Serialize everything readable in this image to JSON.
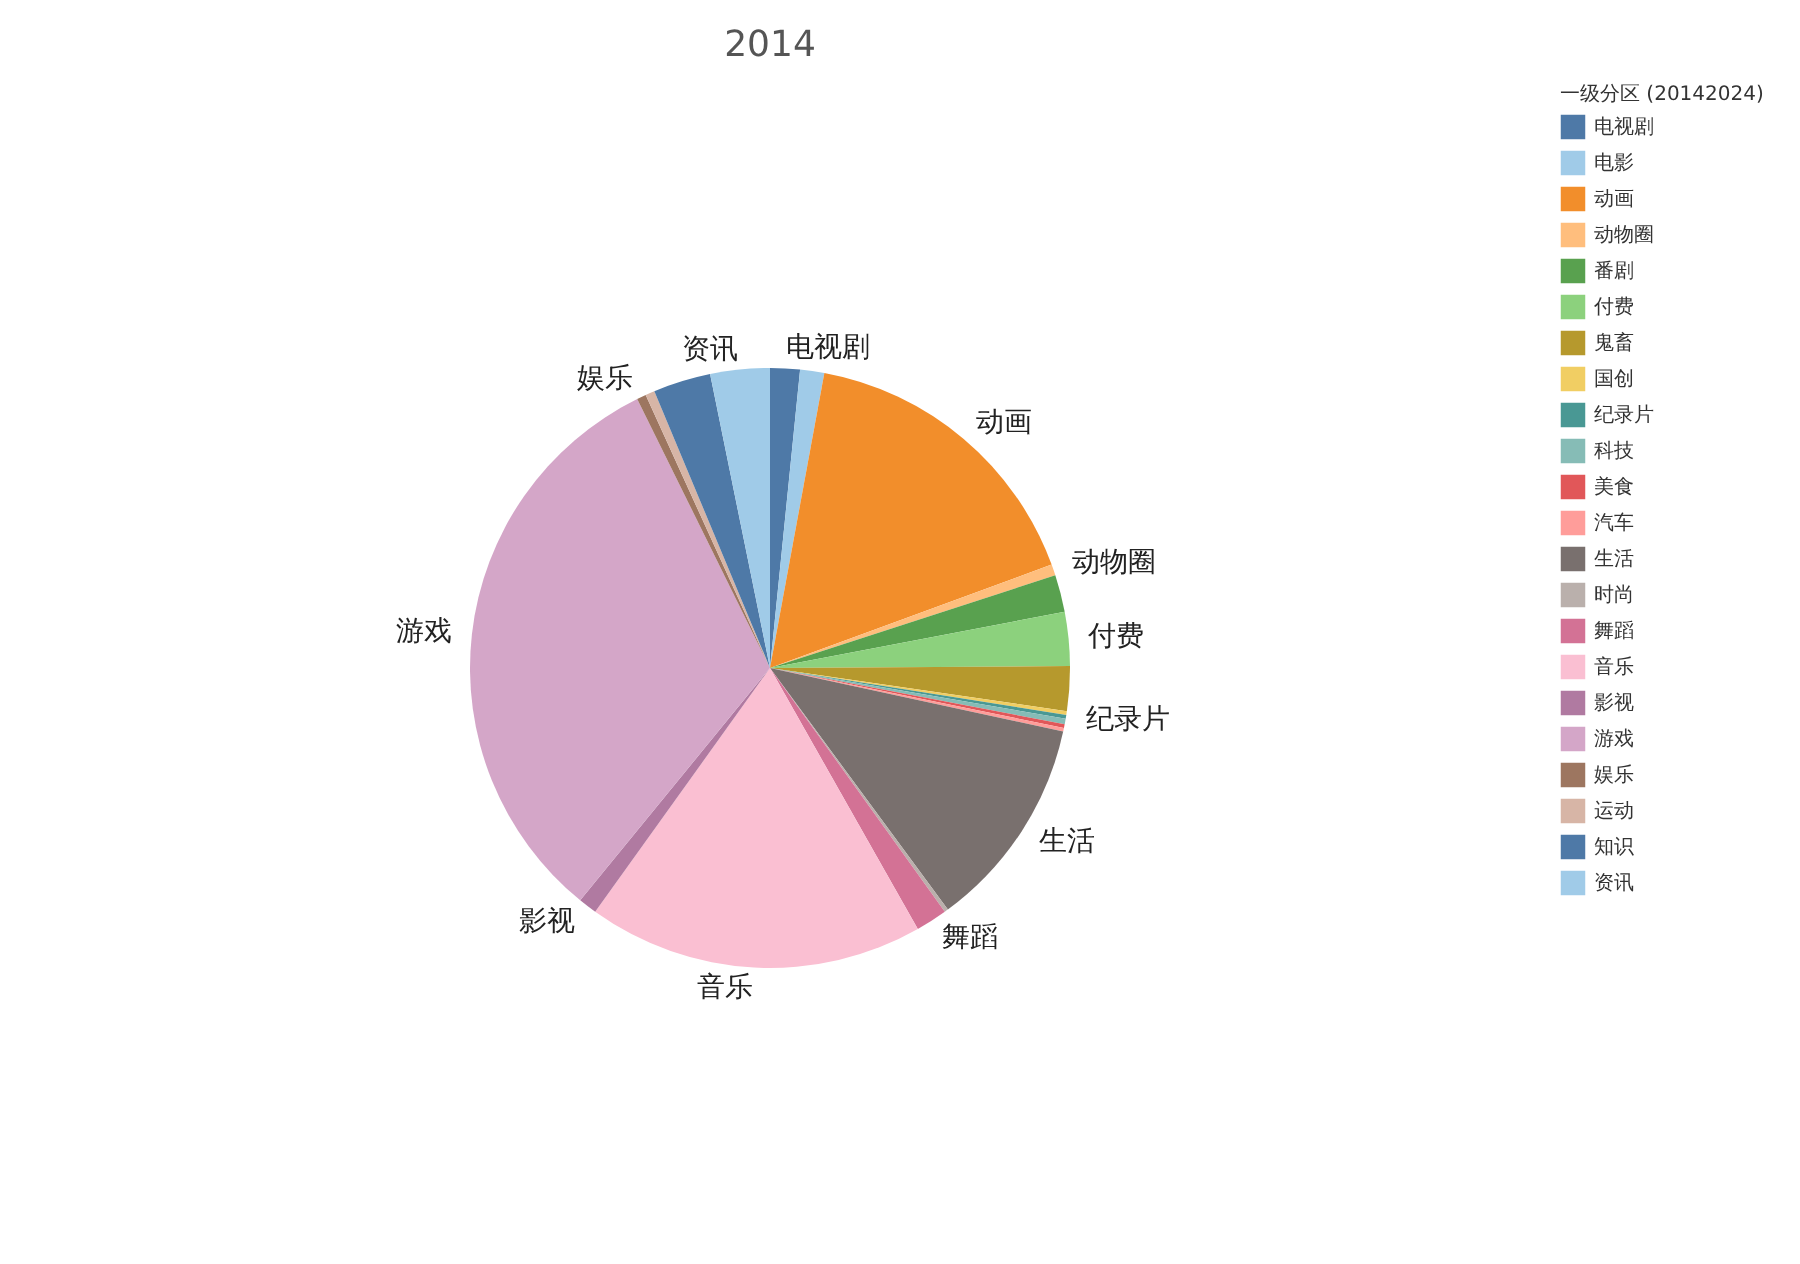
{
  "chart_data": {
    "type": "pie",
    "title": "2014",
    "legend_title": "一级分区 (20142024)",
    "legend": "top right",
    "categories": [
      "电视剧",
      "电影",
      "动画",
      "动物圈",
      "番剧",
      "付费",
      "鬼畜",
      "国创",
      "纪录片",
      "科技",
      "美食",
      "汽车",
      "生活",
      "时尚",
      "舞蹈",
      "音乐",
      "影视",
      "游戏",
      "娱乐",
      "运动",
      "知识",
      "资讯"
    ],
    "values": [
      1.6,
      1.3,
      16.5,
      0.6,
      2.0,
      2.9,
      2.4,
      0.2,
      0.2,
      0.3,
      0.2,
      0.2,
      11.5,
      0.2,
      1.7,
      18.1,
      1.0,
      31.8,
      0.5,
      0.5,
      3.1,
      3.2
    ],
    "colors": [
      "#4e79a7",
      "#a0cbe8",
      "#f28e2b",
      "#ffbe7d",
      "#59a14f",
      "#8cd17d",
      "#b6992d",
      "#f1ce63",
      "#499894",
      "#86bcb6",
      "#e15759",
      "#ff9d9a",
      "#79706e",
      "#bab0ac",
      "#d37295",
      "#fabfd2",
      "#b07aa1",
      "#d4a6c8",
      "#9d7660",
      "#d7b5a6",
      "#4e79a7",
      "#a0cbe8"
    ],
    "value_labels": [
      "电视剧",
      null,
      "动画",
      "动物圈",
      null,
      "付费",
      null,
      null,
      "纪录片",
      null,
      null,
      null,
      "生活",
      null,
      "舞蹈",
      "音乐",
      "影视",
      "游戏",
      "娱乐",
      null,
      null,
      "资讯"
    ]
  }
}
